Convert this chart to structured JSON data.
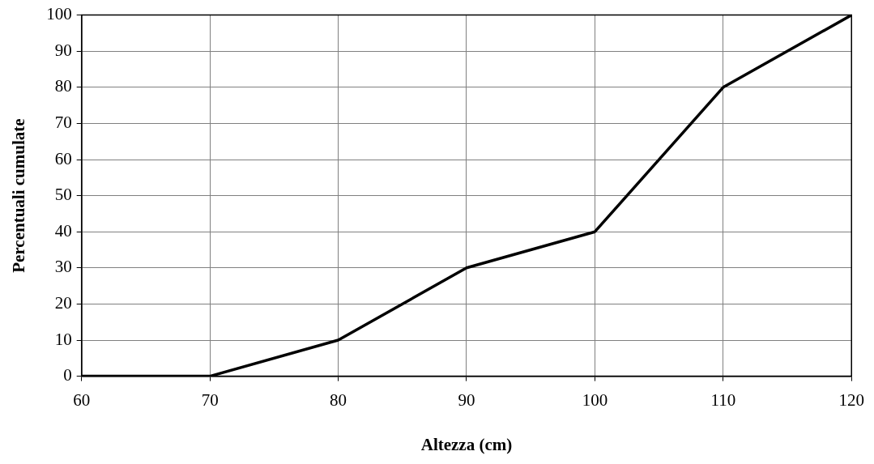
{
  "chart_data": {
    "type": "line",
    "xlabel": "Altezza (cm)",
    "ylabel": "Percentuali cumulate",
    "x": [
      60,
      70,
      80,
      90,
      100,
      110,
      120
    ],
    "series": [
      {
        "color": "#000000",
        "values": [
          0,
          0,
          10,
          30,
          40,
          80,
          100
        ]
      }
    ],
    "xlim": [
      60,
      120
    ],
    "xticks": [
      60,
      70,
      80,
      90,
      100,
      110,
      120
    ],
    "ylim": [
      0,
      100
    ],
    "yticks": [
      0,
      10,
      20,
      30,
      40,
      50,
      60,
      70,
      80,
      90,
      100
    ],
    "grid": true,
    "legend": false,
    "marker": "none",
    "line_style": "solid"
  }
}
